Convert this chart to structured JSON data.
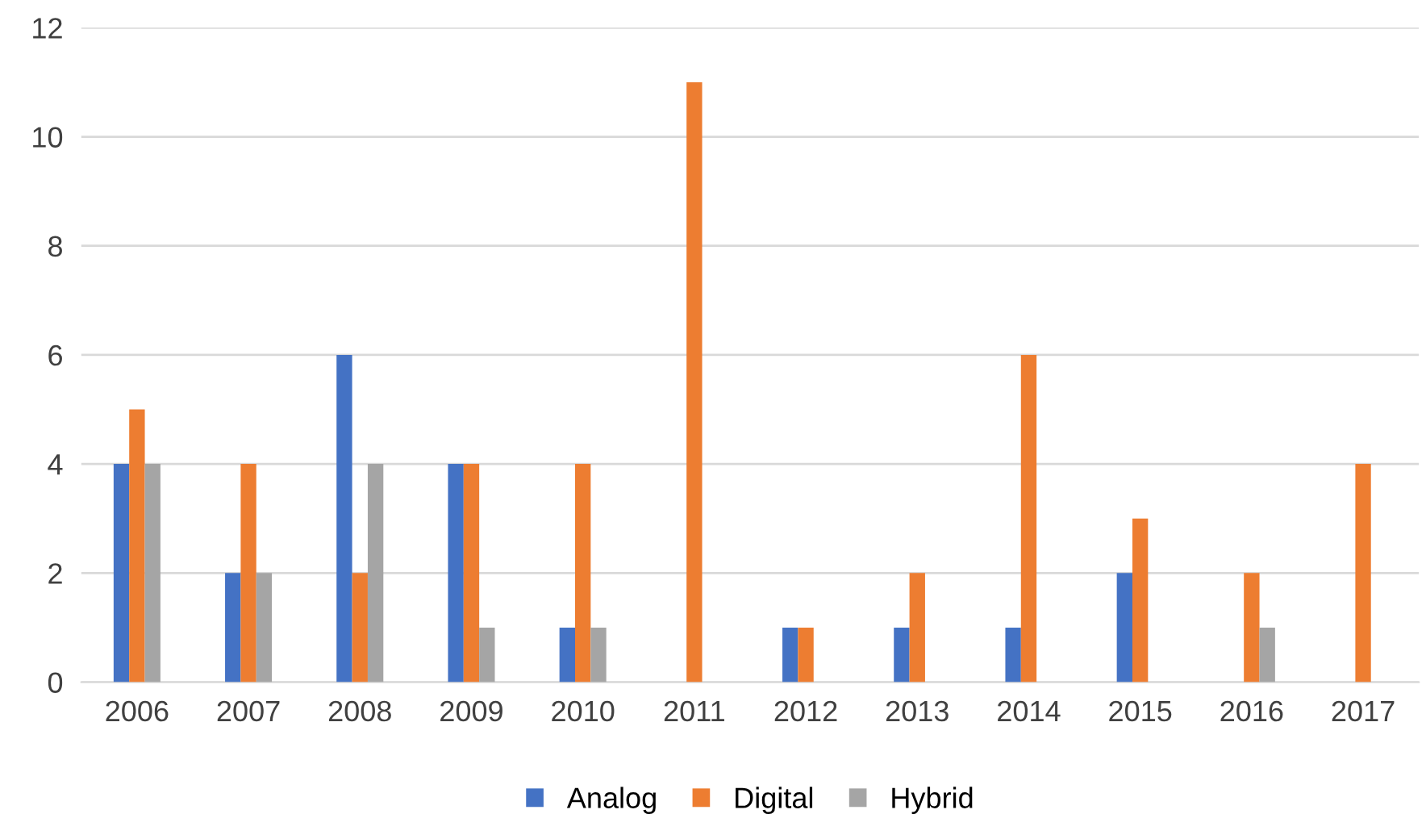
{
  "chart_data": {
    "type": "bar",
    "categories": [
      "2006",
      "2007",
      "2008",
      "2009",
      "2010",
      "2011",
      "2012",
      "2013",
      "2014",
      "2015",
      "2016",
      "2017"
    ],
    "series": [
      {
        "name": "Analog",
        "color": "#4472c4",
        "values": [
          4,
          2,
          6,
          4,
          1,
          0,
          1,
          1,
          1,
          2,
          0,
          0
        ]
      },
      {
        "name": "Digital",
        "color": "#ed7d31",
        "values": [
          5,
          4,
          2,
          4,
          4,
          11,
          1,
          2,
          6,
          3,
          2,
          4
        ]
      },
      {
        "name": "Hybrid",
        "color": "#a5a5a5",
        "values": [
          4,
          2,
          4,
          1,
          1,
          0,
          0,
          0,
          0,
          0,
          1,
          0
        ]
      }
    ],
    "ylim": [
      0,
      12
    ],
    "yticks": [
      0,
      2,
      4,
      6,
      8,
      10,
      12
    ],
    "grid": "y",
    "legend": "bottom"
  }
}
